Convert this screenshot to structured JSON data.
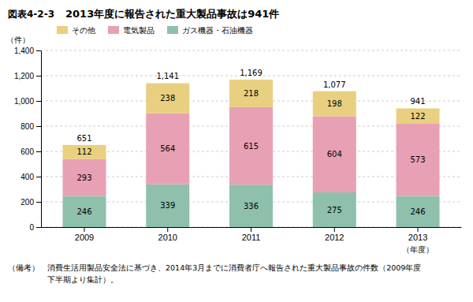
{
  "chart_data": {
    "type": "bar",
    "stacked": true,
    "title": "2013年度に報告された重大製品事故は941件",
    "annotations": [
      "図表4-2-3",
      "（備考）　消費生活用製品安全法に基づき、2014年3月までに消費者庁へ報告された重大製品事故の件数（2009年度",
      "　　　　　下半期より集計）。"
    ],
    "xlabel": "（年度）",
    "ylabel": "（件）",
    "categories": [
      "2009",
      "2010",
      "2011",
      "2012",
      "2013"
    ],
    "series": [
      {
        "name": "ガス機器・石油機器",
        "color": "#8ec0ac",
        "values": [
          246,
          339,
          336,
          275,
          246
        ]
      },
      {
        "name": "電気製品",
        "color": "#e8a0b4",
        "values": [
          293,
          564,
          615,
          604,
          573
        ]
      },
      {
        "name": "その他",
        "color": "#e8d080",
        "values": [
          112,
          238,
          218,
          198,
          122
        ]
      }
    ],
    "totals": {
      "values": [
        651,
        1141,
        1169,
        1077,
        941
      ],
      "value_labels": [
        "651",
        "1,141",
        "1,169",
        "1,077",
        "941"
      ]
    },
    "data_labels": true,
    "ylim": [
      0,
      1400
    ],
    "yticks": [
      0,
      200,
      400,
      600,
      800,
      {
        "value": 1000,
        "label": "1,000"
      },
      {
        "value": 1200,
        "label": "1,200"
      },
      {
        "value": 1400,
        "label": "1,400"
      }
    ],
    "grid": true,
    "legend": "upper left"
  }
}
